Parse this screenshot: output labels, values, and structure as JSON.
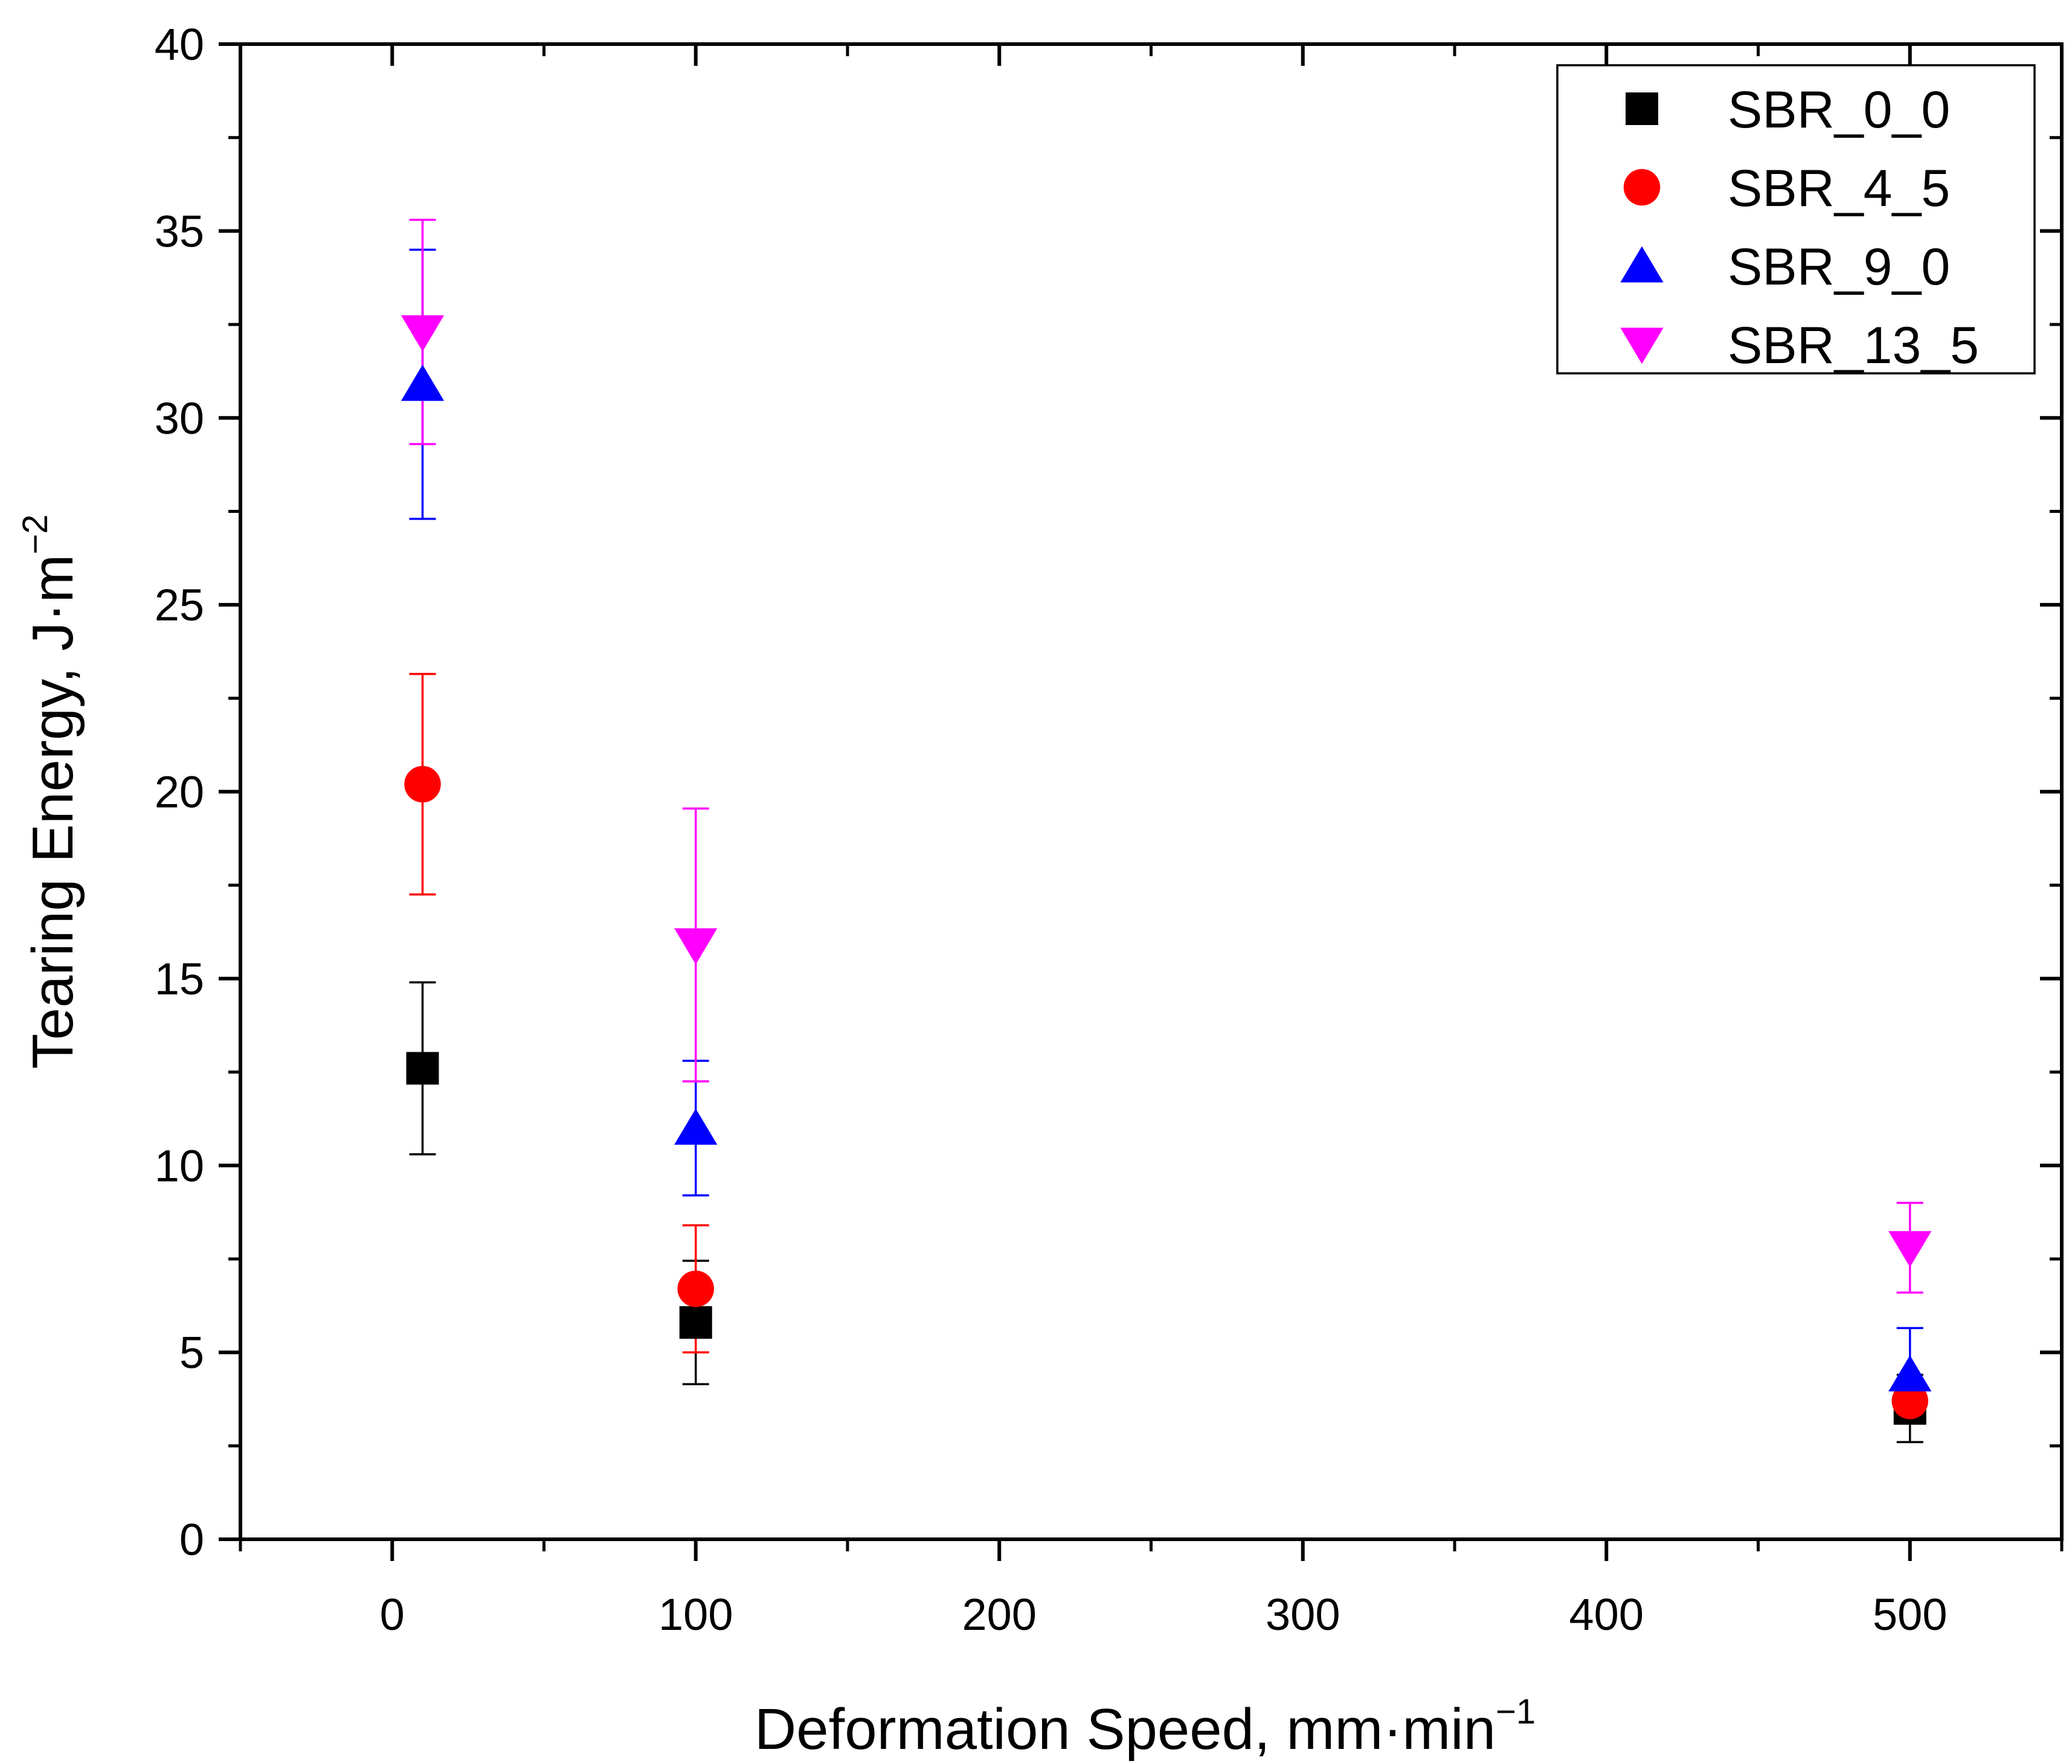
{
  "chart_data": {
    "type": "scatter",
    "title": "",
    "xlabel": "Deformation Speed, mm·min",
    "xlabel_sup": "−1",
    "ylabel": "Tearing Energy, J·m",
    "ylabel_sup": "−2",
    "xlim": [
      -50,
      550
    ],
    "ylim": [
      0,
      40
    ],
    "x_ticks": [
      0,
      100,
      200,
      300,
      400,
      500
    ],
    "x_tick_labels": [
      "0",
      "100",
      "200",
      "300",
      "400",
      "500"
    ],
    "y_ticks": [
      0,
      5,
      10,
      15,
      20,
      25,
      30,
      35,
      40
    ],
    "y_tick_labels": [
      "0",
      "5",
      "10",
      "15",
      "20",
      "25",
      "30",
      "35",
      "40"
    ],
    "legend_position": "top-right",
    "series": [
      {
        "name": "SBR_0_0",
        "color": "#000000",
        "marker": "square",
        "points": [
          {
            "x": 10,
            "y": 12.6,
            "err": 2.3
          },
          {
            "x": 100,
            "y": 5.8,
            "err": 1.65
          },
          {
            "x": 500,
            "y": 3.5,
            "err": 0.9
          }
        ]
      },
      {
        "name": "SBR_4_5",
        "color": "#ff0000",
        "marker": "circle",
        "points": [
          {
            "x": 10,
            "y": 20.2,
            "err": 2.95
          },
          {
            "x": 100,
            "y": 6.7,
            "err": 1.7
          },
          {
            "x": 500,
            "y": 3.7,
            "err": 0.5
          }
        ]
      },
      {
        "name": "SBR_9_0",
        "color": "#0000ff",
        "marker": "triangle-up",
        "points": [
          {
            "x": 10,
            "y": 30.9,
            "err": 3.6
          },
          {
            "x": 100,
            "y": 11.0,
            "err": 1.8
          },
          {
            "x": 500,
            "y": 4.4,
            "err": 1.25
          }
        ]
      },
      {
        "name": "SBR_13_5",
        "color": "#ff00ff",
        "marker": "triangle-down",
        "points": [
          {
            "x": 10,
            "y": 32.3,
            "err": 3.0
          },
          {
            "x": 100,
            "y": 15.9,
            "err": 3.65
          },
          {
            "x": 500,
            "y": 7.8,
            "err": 1.2
          }
        ]
      }
    ]
  }
}
